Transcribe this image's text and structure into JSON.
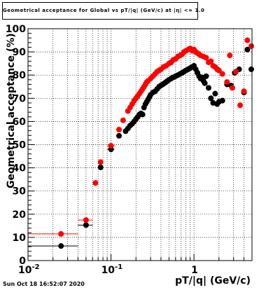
{
  "title": "Geometrical acceptance for Global vs pT/|q| (GeV/c) at |η| <= 1.0",
  "footer": "Sun Oct 18 16:52:07 2020",
  "colors": {
    "black": "#000000",
    "red": "#ff0000",
    "grid": "#000000"
  },
  "chart_data": {
    "type": "scatter",
    "xlabel": "pT/|q| (GeV/c)",
    "ylabel": "Geometrical acceptance (%)",
    "xscale": "log",
    "xlim": [
      0.01,
      5
    ],
    "ylim": [
      0,
      100
    ],
    "grid": true,
    "legend": "none",
    "x_tick_labels": [
      {
        "value": 0.01,
        "base": "10",
        "exp": "-2"
      },
      {
        "value": 0.1,
        "base": "10",
        "exp": "-1"
      },
      {
        "value": 1,
        "base": "1",
        "exp": ""
      }
    ],
    "y_tick_labels": [
      "0",
      "10",
      "20",
      "30",
      "40",
      "50",
      "60",
      "70",
      "80",
      "90",
      "100"
    ],
    "series": [
      {
        "color": "#000000",
        "points": [
          {
            "x": 0.025,
            "y": 6.3,
            "xerr": [
              0.01,
              0.04
            ]
          },
          {
            "x": 0.05,
            "y": 15.3,
            "xerr": [
              0.04,
              0.06
            ]
          },
          {
            "x": 0.075,
            "y": 40.2,
            "xerr": [
              0.07,
              0.08
            ]
          },
          {
            "x": 0.1,
            "y": 48.0,
            "xerr": [
              0.09,
              0.11
            ]
          },
          {
            "x": 0.125,
            "y": 53.8,
            "xerr": [
              0.115,
              0.135
            ]
          },
          {
            "x": 0.15,
            "y": 55.8
          },
          {
            "x": 0.16,
            "y": 57.0
          },
          {
            "x": 0.17,
            "y": 58.2
          },
          {
            "x": 0.18,
            "y": 59.0
          },
          {
            "x": 0.19,
            "y": 60.0
          },
          {
            "x": 0.2,
            "y": 61.0
          },
          {
            "x": 0.21,
            "y": 62.0
          },
          {
            "x": 0.22,
            "y": 63.0
          },
          {
            "x": 0.23,
            "y": 63.5
          },
          {
            "x": 0.24,
            "y": 63.0
          },
          {
            "x": 0.25,
            "y": 66.0
          },
          {
            "x": 0.26,
            "y": 67.5
          },
          {
            "x": 0.27,
            "y": 68.5
          },
          {
            "x": 0.28,
            "y": 69.5
          },
          {
            "x": 0.29,
            "y": 70.5
          },
          {
            "x": 0.3,
            "y": 71.5
          },
          {
            "x": 0.32,
            "y": 72.5
          },
          {
            "x": 0.34,
            "y": 73.0
          },
          {
            "x": 0.36,
            "y": 74.0
          },
          {
            "x": 0.38,
            "y": 75.0
          },
          {
            "x": 0.4,
            "y": 75.5
          },
          {
            "x": 0.42,
            "y": 76.0
          },
          {
            "x": 0.44,
            "y": 76.5
          },
          {
            "x": 0.46,
            "y": 77.0
          },
          {
            "x": 0.48,
            "y": 77.5
          },
          {
            "x": 0.5,
            "y": 78.0
          },
          {
            "x": 0.53,
            "y": 78.5
          },
          {
            "x": 0.56,
            "y": 79.0
          },
          {
            "x": 0.6,
            "y": 79.5
          },
          {
            "x": 0.64,
            "y": 80.0
          },
          {
            "x": 0.68,
            "y": 80.5
          },
          {
            "x": 0.72,
            "y": 81.0
          },
          {
            "x": 0.76,
            "y": 81.5
          },
          {
            "x": 0.8,
            "y": 82.0
          },
          {
            "x": 0.85,
            "y": 82.5
          },
          {
            "x": 0.9,
            "y": 83.0
          },
          {
            "x": 0.95,
            "y": 83.5
          },
          {
            "x": 1.0,
            "y": 84.0
          },
          {
            "x": 1.05,
            "y": 82.5
          },
          {
            "x": 1.1,
            "y": 81.0
          },
          {
            "x": 1.15,
            "y": 79.5
          },
          {
            "x": 1.2,
            "y": 78.5
          },
          {
            "x": 1.25,
            "y": 79.0
          },
          {
            "x": 1.3,
            "y": 77.5
          },
          {
            "x": 1.35,
            "y": 76.5
          },
          {
            "x": 1.4,
            "y": 79.5
          },
          {
            "x": 1.5,
            "y": 74.5
          },
          {
            "x": 1.6,
            "y": 70.0
          },
          {
            "x": 1.7,
            "y": 68.0
          },
          {
            "x": 1.8,
            "y": 72.0
          },
          {
            "x": 1.9,
            "y": 67.5
          },
          {
            "x": 2.0,
            "y": 68.5
          },
          {
            "x": 2.2,
            "y": 69.0
          },
          {
            "x": 2.5,
            "y": 76.0
          },
          {
            "x": 2.8,
            "y": 75.5
          },
          {
            "x": 3.1,
            "y": 81.0
          },
          {
            "x": 3.5,
            "y": 82.5
          },
          {
            "x": 4.0,
            "y": 72.5
          },
          {
            "x": 4.4,
            "y": 91.0
          },
          {
            "x": 4.9,
            "y": 82.5
          }
        ]
      },
      {
        "color": "#ff0000",
        "points": [
          {
            "x": 0.025,
            "y": 11.5,
            "xerr": [
              0.01,
              0.04
            ]
          },
          {
            "x": 0.05,
            "y": 17.5,
            "xerr": [
              0.04,
              0.06
            ]
          },
          {
            "x": 0.065,
            "y": 33.5
          },
          {
            "x": 0.075,
            "y": 42.5,
            "xerr": [
              0.07,
              0.08
            ]
          },
          {
            "x": 0.1,
            "y": 49.5,
            "xerr": [
              0.09,
              0.11
            ]
          },
          {
            "x": 0.125,
            "y": 56.5,
            "xerr": [
              0.115,
              0.135
            ]
          },
          {
            "x": 0.14,
            "y": 60.5
          },
          {
            "x": 0.16,
            "y": 64.5
          },
          {
            "x": 0.17,
            "y": 66.0
          },
          {
            "x": 0.18,
            "y": 67.5
          },
          {
            "x": 0.19,
            "y": 69.0
          },
          {
            "x": 0.2,
            "y": 70.0
          },
          {
            "x": 0.21,
            "y": 71.0
          },
          {
            "x": 0.22,
            "y": 72.0
          },
          {
            "x": 0.23,
            "y": 73.0
          },
          {
            "x": 0.24,
            "y": 74.0
          },
          {
            "x": 0.25,
            "y": 75.0
          },
          {
            "x": 0.26,
            "y": 76.0
          },
          {
            "x": 0.27,
            "y": 77.0
          },
          {
            "x": 0.28,
            "y": 77.5
          },
          {
            "x": 0.3,
            "y": 78.5
          },
          {
            "x": 0.32,
            "y": 79.5
          },
          {
            "x": 0.34,
            "y": 80.5
          },
          {
            "x": 0.36,
            "y": 81.5
          },
          {
            "x": 0.38,
            "y": 82.0
          },
          {
            "x": 0.4,
            "y": 82.5
          },
          {
            "x": 0.43,
            "y": 83.5
          },
          {
            "x": 0.46,
            "y": 84.0
          },
          {
            "x": 0.5,
            "y": 85.0
          },
          {
            "x": 0.53,
            "y": 85.5
          },
          {
            "x": 0.56,
            "y": 86.5
          },
          {
            "x": 0.6,
            "y": 87.0
          },
          {
            "x": 0.64,
            "y": 88.0
          },
          {
            "x": 0.68,
            "y": 88.5
          },
          {
            "x": 0.72,
            "y": 89.0
          },
          {
            "x": 0.76,
            "y": 90.0
          },
          {
            "x": 0.8,
            "y": 90.5
          },
          {
            "x": 0.85,
            "y": 91.0
          },
          {
            "x": 0.9,
            "y": 91.5
          },
          {
            "x": 0.95,
            "y": 90.5
          },
          {
            "x": 1.0,
            "y": 91.0
          },
          {
            "x": 1.05,
            "y": 90.0
          },
          {
            "x": 1.1,
            "y": 89.5
          },
          {
            "x": 1.15,
            "y": 89.0
          },
          {
            "x": 1.2,
            "y": 88.5
          },
          {
            "x": 1.3,
            "y": 88.0
          },
          {
            "x": 1.4,
            "y": 87.5
          },
          {
            "x": 1.5,
            "y": 85.5
          },
          {
            "x": 1.6,
            "y": 86.0
          },
          {
            "x": 1.7,
            "y": 84.0
          },
          {
            "x": 1.8,
            "y": 83.5
          },
          {
            "x": 1.9,
            "y": 82.5
          },
          {
            "x": 2.0,
            "y": 82.0
          },
          {
            "x": 2.2,
            "y": 80.5
          },
          {
            "x": 2.5,
            "y": 77.0
          },
          {
            "x": 2.7,
            "y": 88.5
          },
          {
            "x": 2.9,
            "y": 74.5
          },
          {
            "x": 3.2,
            "y": 81.5
          },
          {
            "x": 3.6,
            "y": 67.0
          },
          {
            "x": 4.0,
            "y": 73.0
          },
          {
            "x": 4.4,
            "y": 95.0
          },
          {
            "x": 4.9,
            "y": 92.5
          }
        ]
      }
    ]
  }
}
